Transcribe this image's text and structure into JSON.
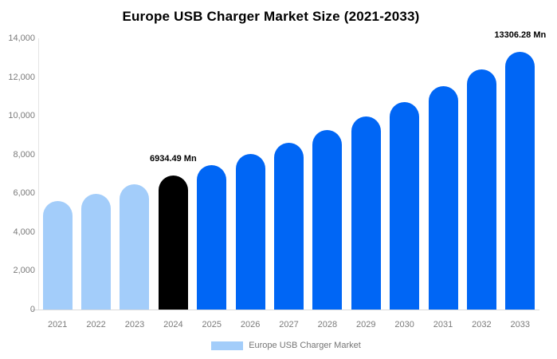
{
  "title": "Europe USB Charger Market Size (2021-2033)",
  "legend": {
    "label": "Europe USB Charger Market",
    "swatch_color": "#a3cdfa"
  },
  "chart_data": {
    "type": "bar",
    "title": "Europe USB Charger Market Size (2021-2033)",
    "unit": "Mn",
    "categories": [
      "2021",
      "2022",
      "2023",
      "2024",
      "2025",
      "2026",
      "2027",
      "2028",
      "2029",
      "2030",
      "2031",
      "2032",
      "2033"
    ],
    "values": [
      5580,
      5990,
      6450,
      6934.49,
      7455,
      8015,
      8620,
      9265,
      9960,
      10710,
      11510,
      12380,
      13306.28
    ],
    "bar_colors": [
      "#a3cdfa",
      "#a3cdfa",
      "#a3cdfa",
      "#000000",
      "#0066f5",
      "#0066f5",
      "#0066f5",
      "#0066f5",
      "#0066f5",
      "#0066f5",
      "#0066f5",
      "#0066f5",
      "#0066f5"
    ],
    "annotations": [
      {
        "category": "2024",
        "text": "6934.49 Mn"
      },
      {
        "category": "2033",
        "text": "13306.28 Mn"
      }
    ],
    "xlabel": "",
    "ylabel": "",
    "ylim": [
      0,
      14000
    ],
    "yticks": [
      "0",
      "2,000",
      "4,000",
      "6,000",
      "8,000",
      "10,000",
      "12,000",
      "14,000"
    ],
    "grid": false,
    "legend_position": "bottom"
  }
}
